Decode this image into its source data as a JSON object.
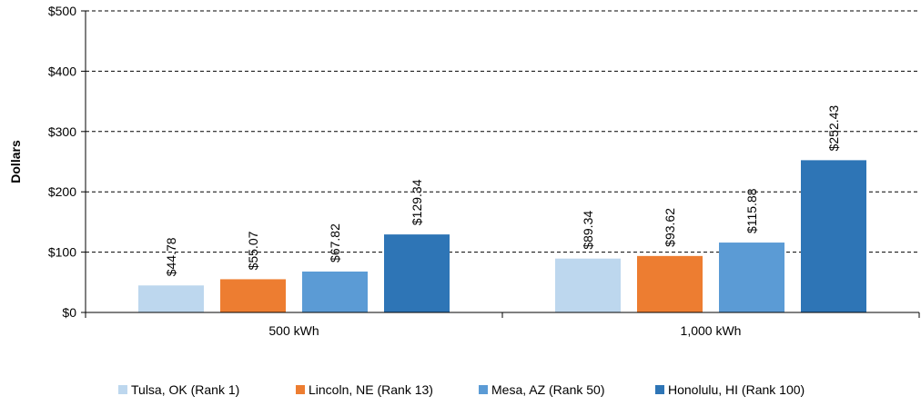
{
  "chart_data": {
    "type": "bar",
    "ylabel": "Dollars",
    "ylim": [
      0,
      500
    ],
    "yticks": [
      0,
      100,
      200,
      300,
      400,
      500
    ],
    "ytick_labels": [
      "$0",
      "$100",
      "$200",
      "$300",
      "$400",
      "$500"
    ],
    "grid": "horizontal dashed",
    "legend_position": "bottom",
    "categories": [
      "500 kWh",
      "1,000 kWh"
    ],
    "series": [
      {
        "name": "Tulsa, OK (Rank 1)",
        "color": "#bdd7ee",
        "values": [
          44.78,
          89.34
        ],
        "labels": [
          "$44.78",
          "$89.34"
        ]
      },
      {
        "name": "Lincoln, NE (Rank 13)",
        "color": "#ed7d31",
        "values": [
          55.07,
          93.62
        ],
        "labels": [
          "$55.07",
          "$93.62"
        ]
      },
      {
        "name": "Mesa, AZ (Rank 50)",
        "color": "#5b9bd5",
        "values": [
          67.82,
          115.88
        ],
        "labels": [
          "$67.82",
          "$115.88"
        ]
      },
      {
        "name": "Honolulu, HI (Rank 100)",
        "color": "#2e75b6",
        "values": [
          129.34,
          252.43
        ],
        "labels": [
          "$129.34",
          "$252.43"
        ]
      }
    ]
  }
}
